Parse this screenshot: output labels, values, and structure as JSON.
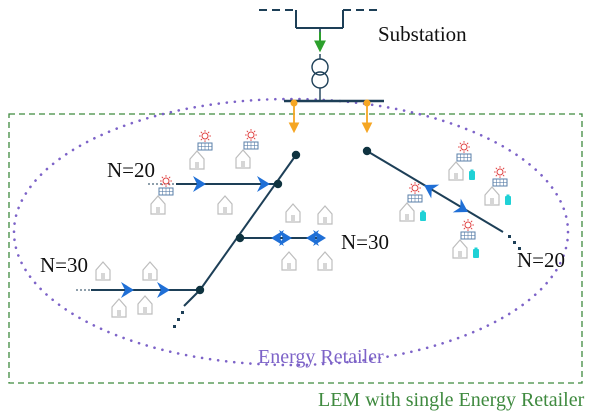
{
  "labels": {
    "substation": "Substation",
    "feeder_left_upper": "N=20",
    "feeder_left_lower": "N=30",
    "feeder_middle": "N=30",
    "feeder_right": "N=20",
    "retailer": "Energy Retailer",
    "market": "LEM with single Energy Retailer"
  },
  "colors": {
    "line": "#1d3f57",
    "node": "#0f3340",
    "arrow_substation": "#2ca02c",
    "arrow_feed": "#f5a623",
    "flow_arrows": "#1f6fd6",
    "house": "#c8c8c8",
    "panel": "#5a7fa8",
    "battery": "#1fd1d6",
    "sun": "#e04040",
    "retailer_boundary": "#7d63c8",
    "market_boundary": "#3f8a3f",
    "retailer_text": "#7d63c8",
    "market_text": "#3f8a3f"
  },
  "icons": [
    "transformer-icon",
    "house-icon",
    "solar-panel-icon",
    "battery-icon",
    "sun-icon"
  ]
}
